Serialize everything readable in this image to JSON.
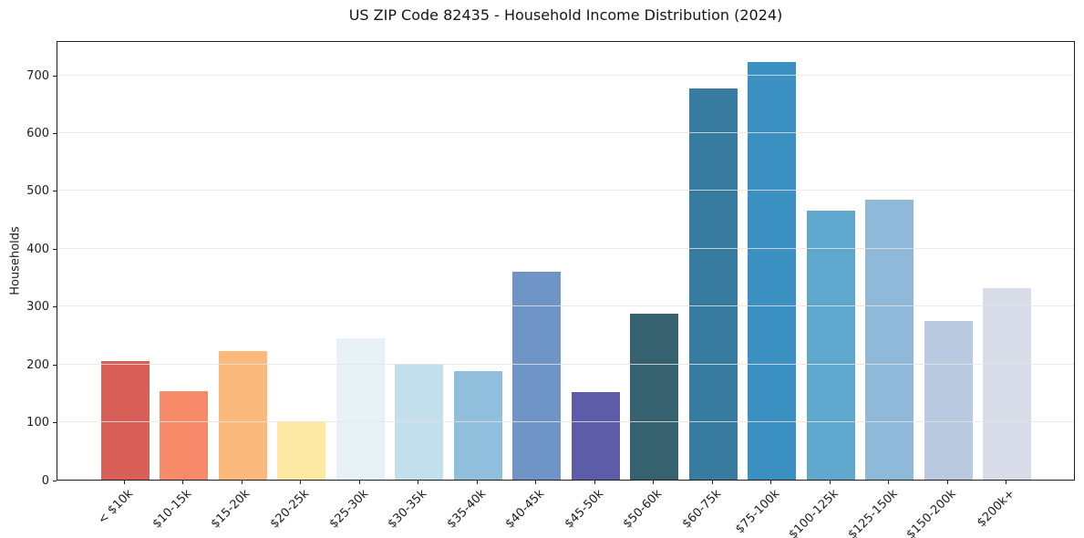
{
  "chart_data": {
    "type": "bar",
    "title": "US ZIP Code 82435 - Household Income Distribution (2024)",
    "xlabel": "",
    "ylabel": "Households",
    "categories": [
      "< $10k",
      "$10-15k",
      "$15-20k",
      "$20-25k",
      "$25-30k",
      "$30-35k",
      "$35-40k",
      "$40-45k",
      "$45-50k",
      "$50-60k",
      "$60-75k",
      "$75-100k",
      "$100-125k",
      "$125-150k",
      "$150-200k",
      "$200k+"
    ],
    "values": [
      205,
      153,
      222,
      101,
      245,
      201,
      188,
      360,
      151,
      287,
      676,
      723,
      465,
      484,
      274,
      331
    ],
    "bar_colors": [
      "#d85f57",
      "#f68a69",
      "#fcb97c",
      "#fde9a4",
      "#e7f2f6",
      "#c1e0ec",
      "#90bedd",
      "#6e95c5",
      "#5d5ca8",
      "#36616f",
      "#377b9f",
      "#3a90c1",
      "#5ea7cd",
      "#8fb9d8",
      "#b9cae0",
      "#d8dbe8"
    ],
    "yticks": [
      0,
      100,
      200,
      300,
      400,
      500,
      600,
      700
    ],
    "ylim": [
      0,
      760
    ],
    "grid": true,
    "legend": "none",
    "x_tick_rotation_deg": 45
  }
}
